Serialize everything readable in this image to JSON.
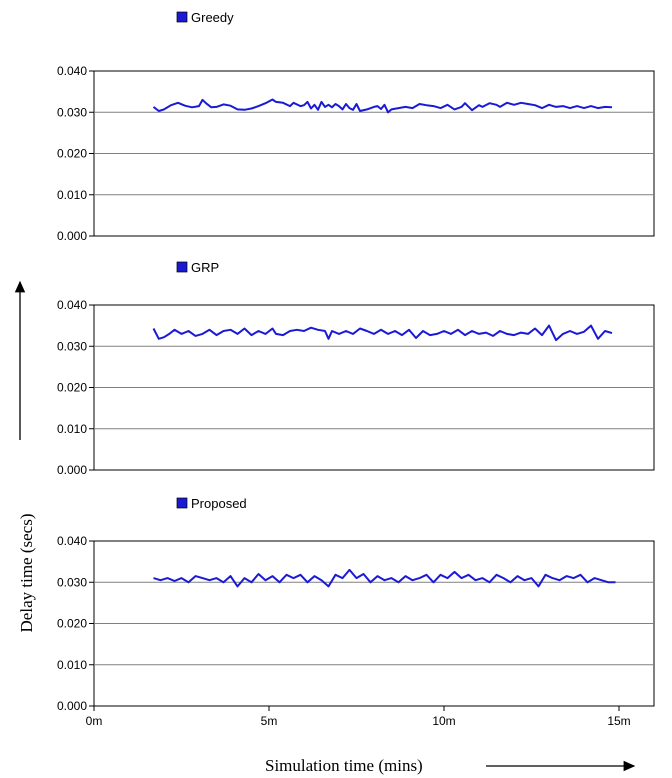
{
  "chart_data": {
    "type": "line",
    "xlabel": "Simulation time (mins)",
    "ylabel": "Delay time (secs)",
    "x_tick_labels": [
      "0m",
      "5m",
      "10m",
      "15m"
    ],
    "x_range": [
      0,
      16
    ],
    "ylim": [
      0,
      0.04
    ],
    "y_tick_labels": [
      "0.000",
      "0.010",
      "0.020",
      "0.030",
      "0.040"
    ],
    "grid": "horizontal",
    "colors": {
      "series": "#1a1ad6",
      "axis": "#000000",
      "grid": "#808080"
    },
    "panels": [
      {
        "series": [
          {
            "name": "Greedy",
            "x": [
              1.7,
              1.85,
              2.0,
              2.2,
              2.4,
              2.6,
              2.8,
              3.0,
              3.1,
              3.2,
              3.35,
              3.5,
              3.7,
              3.9,
              4.1,
              4.3,
              4.5,
              4.7,
              4.9,
              5.1,
              5.2,
              5.4,
              5.6,
              5.7,
              5.9,
              6.0,
              6.1,
              6.2,
              6.3,
              6.4,
              6.5,
              6.6,
              6.7,
              6.8,
              6.9,
              7.0,
              7.1,
              7.2,
              7.3,
              7.4,
              7.5,
              7.6,
              7.8,
              8.0,
              8.1,
              8.2,
              8.3,
              8.4,
              8.5,
              8.7,
              8.9,
              9.1,
              9.3,
              9.5,
              9.7,
              9.9,
              10.1,
              10.3,
              10.5,
              10.6,
              10.8,
              11.0,
              11.1,
              11.3,
              11.5,
              11.6,
              11.8,
              12.0,
              12.2,
              12.4,
              12.6,
              12.8,
              13.0,
              13.2,
              13.4,
              13.6,
              13.8,
              14.0,
              14.2,
              14.4,
              14.6,
              14.8
            ],
            "values": [
              0.0313,
              0.0303,
              0.0307,
              0.0317,
              0.0323,
              0.0316,
              0.0312,
              0.0315,
              0.033,
              0.0322,
              0.0312,
              0.0313,
              0.0319,
              0.0316,
              0.0307,
              0.0306,
              0.0309,
              0.0315,
              0.0322,
              0.0331,
              0.0325,
              0.0323,
              0.0315,
              0.0323,
              0.0315,
              0.0317,
              0.0325,
              0.0309,
              0.0318,
              0.0306,
              0.0325,
              0.0313,
              0.0318,
              0.0312,
              0.032,
              0.0315,
              0.0307,
              0.032,
              0.031,
              0.0306,
              0.032,
              0.0303,
              0.0307,
              0.0313,
              0.0315,
              0.0308,
              0.0318,
              0.03,
              0.0307,
              0.031,
              0.0313,
              0.031,
              0.032,
              0.0317,
              0.0315,
              0.031,
              0.0318,
              0.0307,
              0.0313,
              0.0322,
              0.0305,
              0.0317,
              0.0313,
              0.0322,
              0.0318,
              0.0313,
              0.0323,
              0.0318,
              0.0323,
              0.032,
              0.0317,
              0.031,
              0.0318,
              0.0313,
              0.0315,
              0.031,
              0.0315,
              0.031,
              0.0315,
              0.031,
              0.0313,
              0.0312
            ]
          }
        ]
      },
      {
        "series": [
          {
            "name": "GRP",
            "x": [
              1.7,
              1.85,
              2.0,
              2.15,
              2.3,
              2.5,
              2.7,
              2.9,
              3.1,
              3.3,
              3.5,
              3.7,
              3.9,
              4.1,
              4.3,
              4.5,
              4.7,
              4.9,
              5.1,
              5.2,
              5.4,
              5.6,
              5.8,
              6.0,
              6.2,
              6.4,
              6.6,
              6.7,
              6.8,
              7.0,
              7.2,
              7.4,
              7.6,
              7.8,
              8.0,
              8.2,
              8.4,
              8.6,
              8.8,
              9.0,
              9.1,
              9.2,
              9.4,
              9.6,
              9.8,
              10.0,
              10.2,
              10.4,
              10.6,
              10.8,
              11.0,
              11.2,
              11.4,
              11.6,
              11.8,
              12.0,
              12.2,
              12.4,
              12.6,
              12.8,
              13.0,
              13.2,
              13.4,
              13.6,
              13.8,
              14.0,
              14.2,
              14.4,
              14.6,
              14.8
            ],
            "values": [
              0.0343,
              0.0318,
              0.0322,
              0.033,
              0.034,
              0.033,
              0.0337,
              0.0325,
              0.033,
              0.034,
              0.0327,
              0.0337,
              0.034,
              0.033,
              0.0343,
              0.0327,
              0.0337,
              0.033,
              0.0343,
              0.033,
              0.0327,
              0.0337,
              0.034,
              0.0337,
              0.0345,
              0.034,
              0.0337,
              0.0318,
              0.0337,
              0.033,
              0.0337,
              0.033,
              0.0343,
              0.0337,
              0.033,
              0.034,
              0.033,
              0.0337,
              0.0327,
              0.034,
              0.033,
              0.032,
              0.0337,
              0.0327,
              0.033,
              0.0337,
              0.033,
              0.034,
              0.0327,
              0.0337,
              0.033,
              0.0333,
              0.0325,
              0.0337,
              0.033,
              0.0327,
              0.0333,
              0.033,
              0.0343,
              0.0327,
              0.035,
              0.0315,
              0.033,
              0.0337,
              0.033,
              0.0335,
              0.035,
              0.0318,
              0.0337,
              0.0332
            ]
          }
        ]
      },
      {
        "series": [
          {
            "name": "Proposed",
            "x": [
              1.7,
              1.9,
              2.1,
              2.3,
              2.5,
              2.7,
              2.9,
              3.1,
              3.3,
              3.5,
              3.7,
              3.9,
              4.1,
              4.3,
              4.5,
              4.7,
              4.9,
              5.1,
              5.3,
              5.5,
              5.7,
              5.9,
              6.1,
              6.3,
              6.5,
              6.7,
              6.9,
              7.1,
              7.3,
              7.5,
              7.7,
              7.9,
              8.1,
              8.3,
              8.5,
              8.7,
              8.9,
              9.1,
              9.3,
              9.5,
              9.7,
              9.9,
              10.1,
              10.3,
              10.5,
              10.7,
              10.9,
              11.1,
              11.3,
              11.5,
              11.7,
              11.9,
              12.1,
              12.3,
              12.5,
              12.7,
              12.9,
              13.1,
              13.3,
              13.5,
              13.7,
              13.9,
              14.1,
              14.3,
              14.5,
              14.7,
              14.9
            ],
            "values": [
              0.031,
              0.0305,
              0.031,
              0.0303,
              0.031,
              0.03,
              0.0315,
              0.031,
              0.0305,
              0.031,
              0.03,
              0.0315,
              0.029,
              0.031,
              0.03,
              0.032,
              0.0305,
              0.0315,
              0.03,
              0.0318,
              0.031,
              0.0318,
              0.03,
              0.0315,
              0.0305,
              0.029,
              0.0318,
              0.031,
              0.033,
              0.031,
              0.032,
              0.03,
              0.0315,
              0.0305,
              0.031,
              0.03,
              0.0315,
              0.0305,
              0.031,
              0.0318,
              0.03,
              0.0318,
              0.031,
              0.0325,
              0.031,
              0.0318,
              0.0305,
              0.031,
              0.03,
              0.0318,
              0.031,
              0.03,
              0.0315,
              0.0305,
              0.031,
              0.029,
              0.0318,
              0.031,
              0.0305,
              0.0315,
              0.031,
              0.0318,
              0.03,
              0.031,
              0.0305,
              0.03,
              0.03
            ]
          }
        ]
      }
    ]
  }
}
